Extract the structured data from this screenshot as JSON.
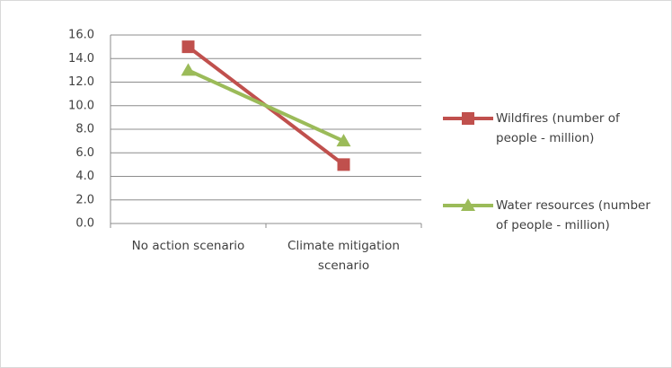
{
  "chart_data": {
    "type": "line",
    "categories": [
      "No action scenario",
      "Climate mitigation scenario"
    ],
    "series": [
      {
        "name": "Wildfires (number of people - million)",
        "color": "#c0504d",
        "marker": "square",
        "values": [
          15.0,
          5.0
        ]
      },
      {
        "name": "Water resources (number of people - million)",
        "color": "#9bbb59",
        "marker": "triangle",
        "values": [
          13.0,
          7.0
        ]
      }
    ],
    "ylim": [
      0,
      16
    ],
    "yticks": [
      {
        "value": 0,
        "label": "0.0"
      },
      {
        "value": 2,
        "label": "2.0"
      },
      {
        "value": 4,
        "label": "4.0"
      },
      {
        "value": 6,
        "label": "6.0"
      },
      {
        "value": 8,
        "label": "8.0"
      },
      {
        "value": 10,
        "label": "10.0"
      },
      {
        "value": 12,
        "label": "12.0"
      },
      {
        "value": 14,
        "label": "14.0"
      },
      {
        "value": 16,
        "label": "16.0"
      }
    ],
    "grid": true,
    "legend": "right"
  }
}
